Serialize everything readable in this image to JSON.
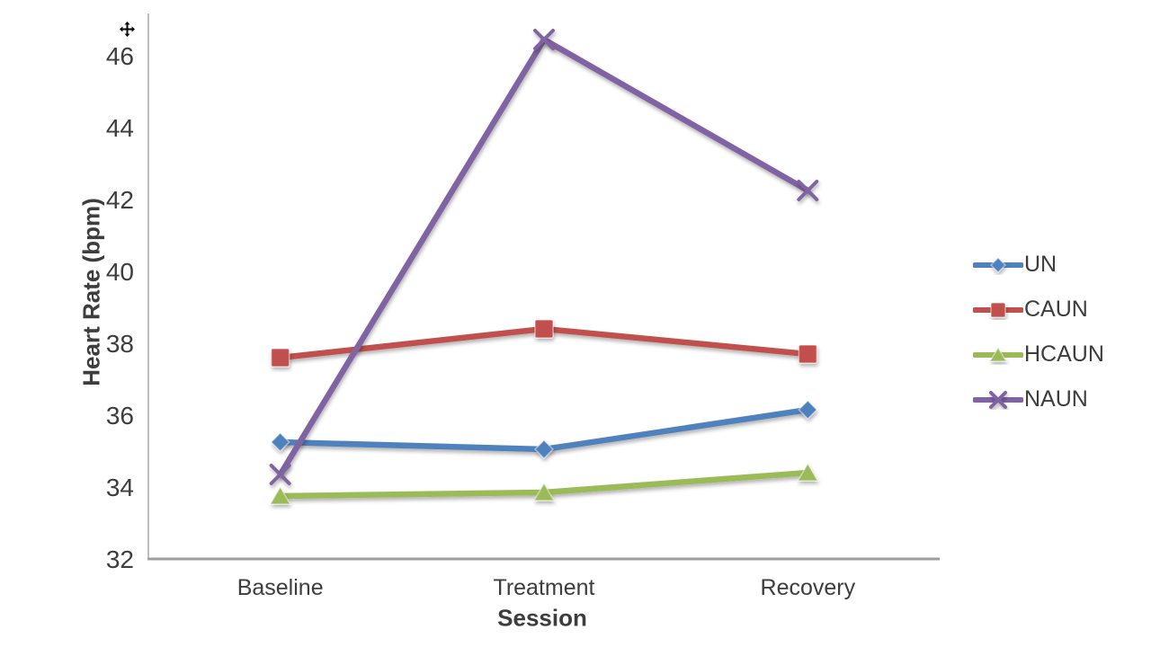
{
  "overlay": {
    "cursor_icon": "move"
  },
  "chart_data": {
    "type": "line",
    "title": "",
    "xlabel": "Session",
    "ylabel": "Heart Rate (bpm)",
    "categories": [
      "Baseline",
      "Treatment",
      "Recovery"
    ],
    "ylim": [
      32,
      46
    ],
    "ytick_step": 2,
    "ytick_labels": [
      "32",
      "34",
      "36",
      "38",
      "40",
      "42",
      "44",
      "46"
    ],
    "grid": false,
    "legend_position": "right",
    "axis_color_x": "#9e9e9e",
    "axis_color_y": "#c0c0c0",
    "text_color": "#3d3d3d",
    "series": [
      {
        "name": "UN",
        "marker": "diamond",
        "color": "#4f81bd",
        "values": [
          35.25,
          35.05,
          36.15
        ]
      },
      {
        "name": "CAUN",
        "marker": "square",
        "color": "#c0504d",
        "values": [
          37.6,
          38.4,
          37.7
        ]
      },
      {
        "name": "HCAUN",
        "marker": "triangle",
        "color": "#9bbb59",
        "values": [
          33.75,
          33.85,
          34.4
        ]
      },
      {
        "name": "NAUN",
        "marker": "x",
        "color": "#8064a2",
        "values": [
          34.35,
          46.45,
          42.25
        ]
      }
    ]
  }
}
